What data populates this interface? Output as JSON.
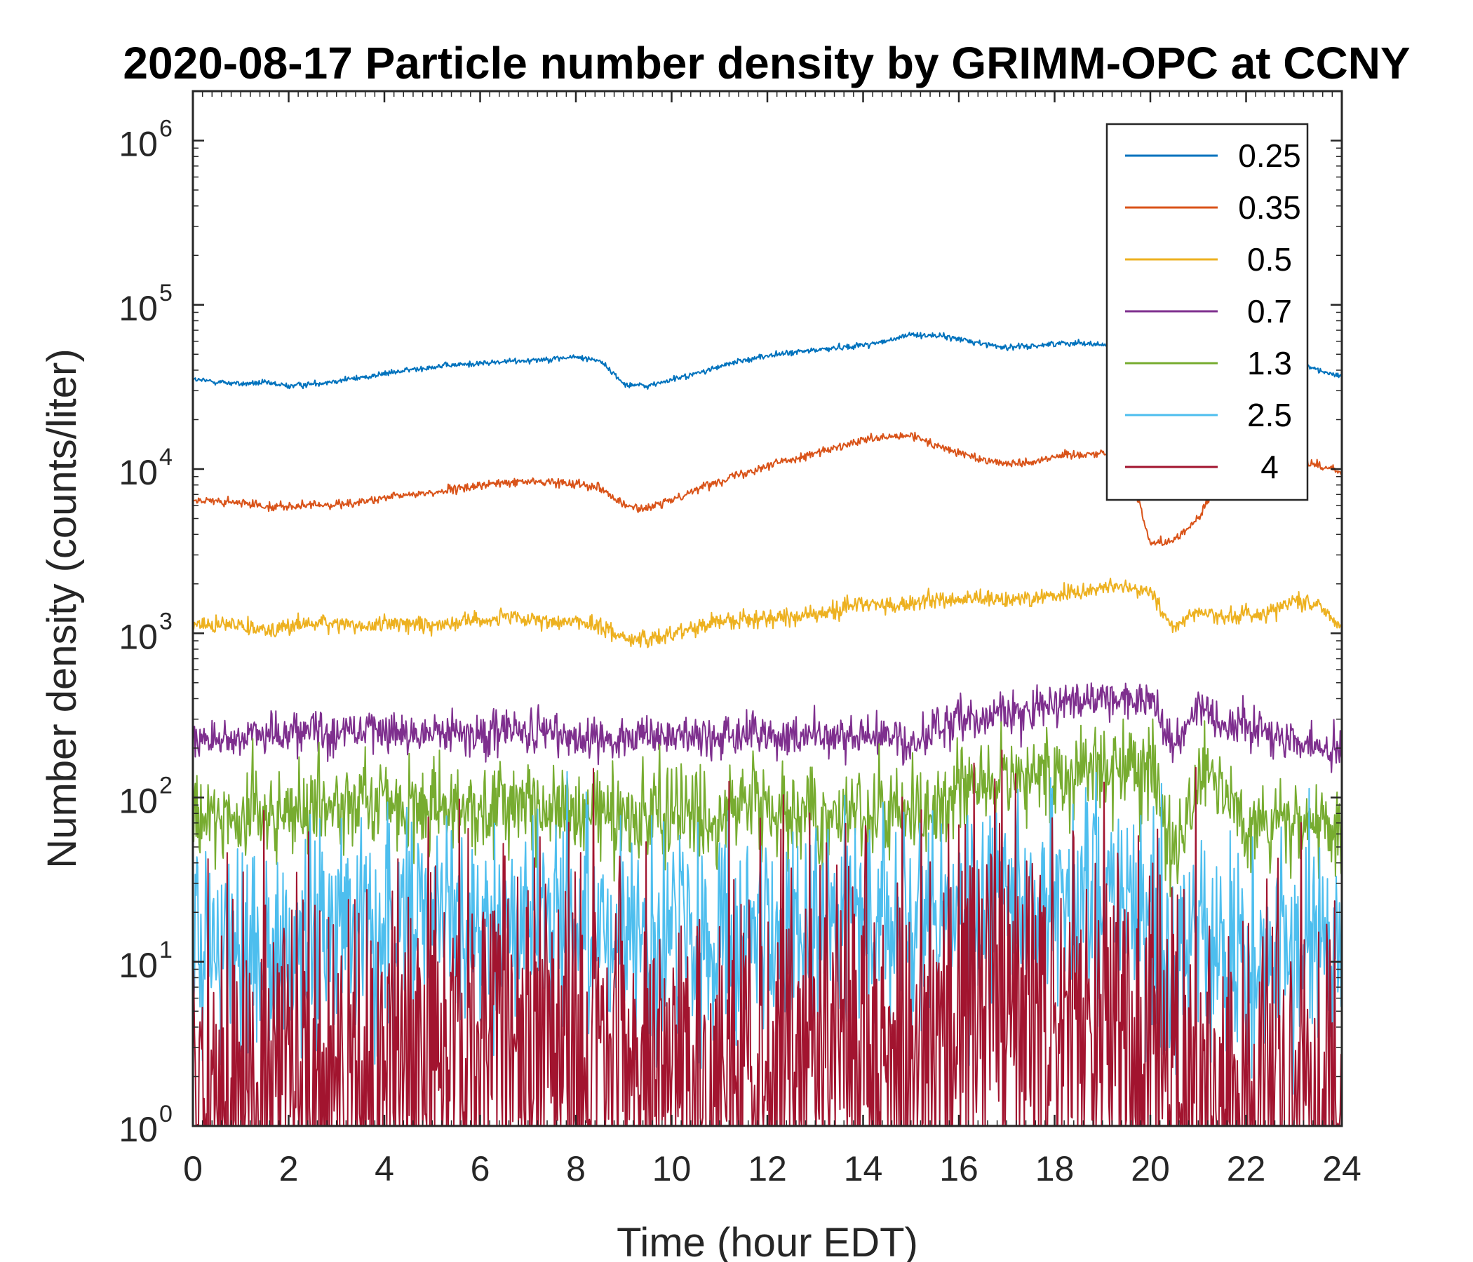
{
  "chart_data": {
    "type": "line",
    "title": "2020-08-17 Particle number density by GRIMM-OPC at CCNY",
    "xlabel": "Time (hour EDT)",
    "ylabel": "Number density (counts/liter)",
    "xlim": [
      0,
      24
    ],
    "ylim": [
      1,
      2000000
    ],
    "yscale": "log",
    "xticks": [
      0,
      2,
      4,
      6,
      8,
      10,
      12,
      14,
      16,
      18,
      20,
      22,
      24
    ],
    "xtick_labels": [
      "0",
      "2",
      "4",
      "6",
      "8",
      "10",
      "12",
      "14",
      "16",
      "18",
      "20",
      "22",
      "24"
    ],
    "yticks": [
      1,
      10,
      100,
      1000,
      10000,
      100000,
      1000000
    ],
    "ytick_labels": [
      {
        "base": "10",
        "exp": "0"
      },
      {
        "base": "10",
        "exp": "1"
      },
      {
        "base": "10",
        "exp": "2"
      },
      {
        "base": "10",
        "exp": "3"
      },
      {
        "base": "10",
        "exp": "4"
      },
      {
        "base": "10",
        "exp": "5"
      },
      {
        "base": "10",
        "exp": "6"
      }
    ],
    "grid": false,
    "box": true,
    "legend_location": "top-right",
    "x": [
      0,
      0.5,
      1,
      1.5,
      2,
      2.5,
      3,
      3.5,
      4,
      4.5,
      5,
      5.5,
      6,
      6.5,
      7,
      7.5,
      8,
      8.5,
      9,
      9.5,
      10,
      10.5,
      11,
      11.5,
      12,
      12.5,
      13,
      13.5,
      14,
      14.5,
      15,
      15.5,
      16,
      16.5,
      17,
      17.5,
      18,
      18.5,
      19,
      19.5,
      20,
      20.5,
      21,
      21.5,
      22,
      22.5,
      23,
      23.5,
      24
    ],
    "series": [
      {
        "name": "0.25",
        "color": "#0072BD",
        "noise": 0.02,
        "values": [
          35000,
          34000,
          33000,
          33500,
          32000,
          33000,
          34500,
          36000,
          38000,
          40000,
          42000,
          43000,
          44000,
          45000,
          46000,
          47000,
          48000,
          46000,
          33000,
          32000,
          35000,
          38000,
          42000,
          46000,
          49000,
          51000,
          53000,
          55000,
          57000,
          60000,
          66000,
          65000,
          62000,
          58000,
          55000,
          56000,
          58000,
          59000,
          57000,
          56000,
          55000,
          54000,
          53000,
          52000,
          51000,
          49000,
          45000,
          40000,
          37000
        ]
      },
      {
        "name": "0.35",
        "color": "#D95319",
        "noise": 0.03,
        "values": [
          6500,
          6300,
          6200,
          6000,
          5900,
          6000,
          6100,
          6300,
          6600,
          7000,
          7200,
          7500,
          8000,
          8200,
          8400,
          8300,
          8200,
          7800,
          6000,
          5700,
          6500,
          7500,
          8500,
          9500,
          10500,
          11500,
          12500,
          13500,
          15000,
          15500,
          16000,
          14000,
          12500,
          11500,
          10800,
          11000,
          12000,
          12300,
          12500,
          12200,
          3500,
          3700,
          5000,
          9000,
          12000,
          13000,
          11500,
          10500,
          9500
        ]
      },
      {
        "name": "0.5",
        "color": "#EDB120",
        "noise": 0.06,
        "values": [
          1150,
          1100,
          1150,
          1050,
          1100,
          1150,
          1150,
          1100,
          1150,
          1150,
          1100,
          1200,
          1200,
          1250,
          1200,
          1150,
          1200,
          1100,
          950,
          900,
          1000,
          1100,
          1200,
          1200,
          1250,
          1250,
          1300,
          1400,
          1550,
          1450,
          1500,
          1600,
          1600,
          1600,
          1600,
          1650,
          1700,
          1800,
          1900,
          1900,
          1800,
          1050,
          1400,
          1250,
          1300,
          1350,
          1600,
          1500,
          1100
        ]
      },
      {
        "name": "0.7",
        "color": "#7E2F8E",
        "noise": 0.15,
        "values": [
          230,
          220,
          240,
          250,
          250,
          260,
          250,
          255,
          260,
          240,
          250,
          250,
          245,
          260,
          250,
          240,
          230,
          235,
          230,
          220,
          240,
          235,
          230,
          240,
          235,
          230,
          240,
          235,
          230,
          240,
          200,
          260,
          300,
          320,
          330,
          350,
          360,
          380,
          380,
          390,
          400,
          200,
          380,
          290,
          270,
          250,
          230,
          210,
          180
        ]
      },
      {
        "name": "1.3",
        "color": "#77AC30",
        "noise": 0.32,
        "values": [
          75,
          72,
          78,
          80,
          82,
          85,
          88,
          90,
          88,
          92,
          85,
          88,
          85,
          90,
          88,
          85,
          82,
          86,
          80,
          78,
          80,
          82,
          78,
          80,
          82,
          78,
          80,
          82,
          78,
          80,
          78,
          84,
          120,
          125,
          130,
          135,
          140,
          145,
          150,
          155,
          165,
          40,
          140,
          110,
          75,
          70,
          65,
          60,
          55
        ]
      },
      {
        "name": "2.5",
        "color": "#4DBEEE",
        "noise": 0.75,
        "values": [
          12,
          11,
          12,
          11,
          12,
          13,
          14,
          15,
          16,
          15,
          16,
          17,
          17,
          18,
          17,
          16,
          17,
          16,
          14,
          13,
          14,
          15,
          14,
          15,
          16,
          15,
          16,
          17,
          18,
          17,
          18,
          19,
          20,
          20,
          21,
          21,
          20,
          20,
          21,
          21,
          22,
          7,
          14,
          11,
          10,
          10,
          11,
          12,
          11
        ]
      },
      {
        "name": "4",
        "color": "#A2142F",
        "noise": 1.6,
        "values": [
          1.1,
          1.2,
          1.3,
          1.4,
          1.5,
          1.5,
          1.6,
          1.7,
          1.7,
          1.8,
          1.8,
          2.0,
          2.6,
          3.0,
          3.2,
          3.0,
          2.9,
          2.8,
          2.5,
          2.3,
          2.4,
          2.5,
          2.4,
          2.6,
          2.8,
          2.9,
          3.0,
          3.2,
          3.4,
          3.6,
          4.2,
          4.5,
          4.8,
          4.6,
          4.7,
          4.5,
          4.8,
          4.4,
          4.6,
          4.7,
          4.5,
          1.3,
          1.2,
          1.2,
          1.1,
          1.1,
          1.2,
          1.2,
          1.1
        ]
      }
    ]
  }
}
